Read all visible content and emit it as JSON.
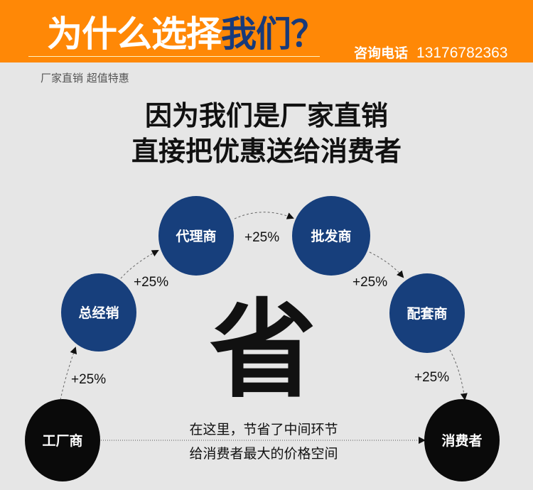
{
  "banner": {
    "title_main": "为什么选择",
    "title_highlight": "我们？",
    "phone_label": "咨询电话",
    "phone_number": "13176782363",
    "colors": {
      "background": "#ff8806",
      "highlight": "#183a7a"
    }
  },
  "subtitle": "厂家直销 超值特惠",
  "headline": [
    "因为我们是厂家直销",
    "直接把优惠送给消费者"
  ],
  "big_char": "省",
  "nodes": {
    "factory": "工厂商",
    "distributor": "总经销",
    "agent": "代理商",
    "wholesaler": "批发商",
    "supplier": "配套商",
    "consumer": "消费者"
  },
  "markups": [
    "+25%",
    "+25%",
    "+25%",
    "+25%",
    "+25%"
  ],
  "direct_note": [
    "在这里，节省了中间环节",
    "给消费者最大的价格空间"
  ],
  "colors": {
    "blue_node": "#173f7c",
    "black_node": "#0a0a0a"
  }
}
